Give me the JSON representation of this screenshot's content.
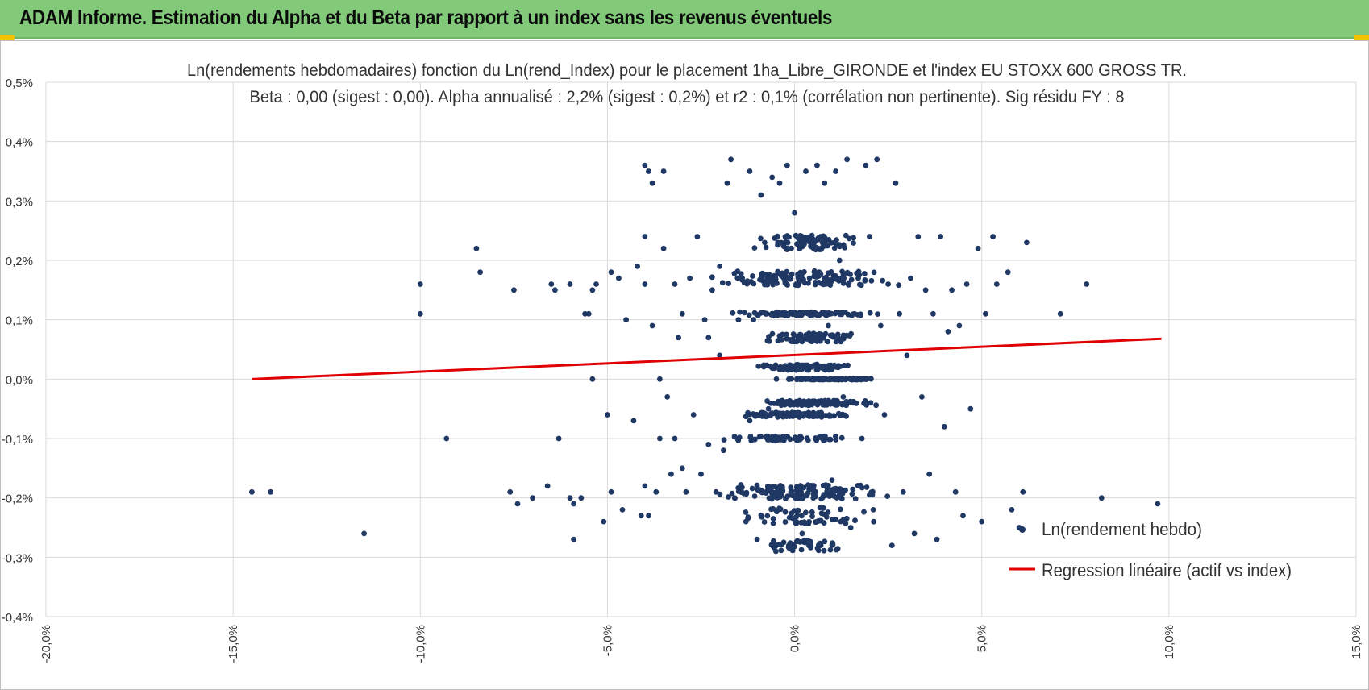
{
  "header": {
    "title": "ADAM Informe. Estimation du Alpha et du Beta par rapport à un index sans les revenus éventuels",
    "bg_color": "#82c97a",
    "corner_color": "#f3c200"
  },
  "chart_data": {
    "type": "scatter",
    "title_line1": "Ln(rendements hebdomadaires) fonction du Ln(rend_Index) pour le placement 1ha_Libre_GIRONDE et l'index EU STOXX 600 GROSS TR.",
    "title_line2": "Beta : 0,00 (sigest : 0,00). Alpha annualisé : 2,2% (sigest : 0,2%) et r2 : 0,1% (corrélation non pertinente). Sig résidu FY : 8",
    "xlim": [
      -0.2,
      0.15
    ],
    "ylim": [
      -0.004,
      0.005
    ],
    "x_ticks": [
      -0.2,
      -0.15,
      -0.1,
      -0.05,
      0.0,
      0.05,
      0.1,
      0.15
    ],
    "x_tick_labels": [
      "-20,0%",
      "-15,0%",
      "-10,0%",
      "-5,0%",
      "0,0%",
      "5,0%",
      "10,0%",
      "15,0%"
    ],
    "y_ticks": [
      0.005,
      0.004,
      0.003,
      0.002,
      0.001,
      0.0,
      -0.001,
      -0.002,
      -0.003,
      -0.004
    ],
    "y_tick_labels": [
      "0,5%",
      "0,4%",
      "0,3%",
      "0,2%",
      "0,1%",
      "0,0%",
      "-0,1%",
      "-0,2%",
      "-0,3%",
      "-0,4%"
    ],
    "grid": true,
    "legend_position": "bottom-right",
    "series": [
      {
        "name": "Ln(rendement hebdo)",
        "kind": "scatter",
        "color": "#1f3864",
        "points": [
          [
            -0.145,
            -0.0019
          ],
          [
            -0.14,
            -0.0019
          ],
          [
            -0.115,
            -0.0026
          ],
          [
            -0.1,
            0.0016
          ],
          [
            -0.1,
            0.0011
          ],
          [
            -0.093,
            -0.001
          ],
          [
            -0.085,
            0.0022
          ],
          [
            -0.084,
            0.0018
          ],
          [
            -0.076,
            -0.0019
          ],
          [
            -0.075,
            0.0015
          ],
          [
            -0.074,
            -0.0021
          ],
          [
            -0.07,
            -0.002
          ],
          [
            -0.066,
            -0.0018
          ],
          [
            -0.065,
            0.0016
          ],
          [
            -0.064,
            0.0015
          ],
          [
            -0.063,
            -0.001
          ],
          [
            -0.06,
            0.0016
          ],
          [
            -0.06,
            -0.002
          ],
          [
            -0.059,
            -0.0021
          ],
          [
            -0.059,
            -0.0027
          ],
          [
            -0.057,
            -0.002
          ],
          [
            -0.056,
            0.0011
          ],
          [
            -0.055,
            0.0011
          ],
          [
            -0.054,
            0.0015
          ],
          [
            -0.054,
            0.0
          ],
          [
            -0.053,
            0.0016
          ],
          [
            -0.051,
            -0.0024
          ],
          [
            -0.05,
            -0.0006
          ],
          [
            -0.049,
            0.0018
          ],
          [
            -0.049,
            -0.0019
          ],
          [
            -0.047,
            0.0017
          ],
          [
            -0.046,
            -0.0022
          ],
          [
            -0.045,
            0.001
          ],
          [
            -0.043,
            -0.0007
          ],
          [
            -0.042,
            0.0019
          ],
          [
            -0.041,
            -0.0023
          ],
          [
            -0.04,
            0.0036
          ],
          [
            -0.04,
            0.0024
          ],
          [
            -0.04,
            0.0016
          ],
          [
            -0.04,
            -0.0018
          ],
          [
            -0.039,
            0.0035
          ],
          [
            -0.039,
            -0.0023
          ],
          [
            -0.038,
            0.0033
          ],
          [
            -0.038,
            0.0009
          ],
          [
            -0.037,
            -0.0019
          ],
          [
            -0.036,
            0.0
          ],
          [
            -0.036,
            -0.001
          ],
          [
            -0.035,
            0.0035
          ],
          [
            -0.035,
            0.0022
          ],
          [
            -0.034,
            -0.0003
          ],
          [
            -0.033,
            -0.0016
          ],
          [
            -0.032,
            0.0016
          ],
          [
            -0.032,
            -0.001
          ],
          [
            -0.031,
            0.0007
          ],
          [
            -0.03,
            0.0011
          ],
          [
            -0.03,
            -0.0015
          ],
          [
            -0.029,
            -0.0019
          ],
          [
            -0.028,
            0.0017
          ],
          [
            -0.027,
            -0.0006
          ],
          [
            -0.026,
            0.0024
          ],
          [
            -0.025,
            -0.0016
          ],
          [
            -0.024,
            0.001
          ],
          [
            -0.023,
            -0.0011
          ],
          [
            -0.023,
            0.0007
          ],
          [
            -0.022,
            0.0015
          ],
          [
            -0.021,
            -0.0019
          ],
          [
            -0.02,
            0.0004
          ],
          [
            -0.02,
            0.0019
          ],
          [
            -0.019,
            -0.0012
          ],
          [
            -0.018,
            0.0033
          ],
          [
            -0.017,
            0.0037
          ],
          [
            -0.016,
            -0.002
          ],
          [
            -0.015,
            0.001
          ],
          [
            -0.014,
            0.0017
          ],
          [
            -0.013,
            -0.0024
          ],
          [
            -0.012,
            0.0035
          ],
          [
            -0.012,
            -0.0007
          ],
          [
            -0.011,
            0.001
          ],
          [
            -0.01,
            -0.0027
          ],
          [
            -0.009,
            0.0031
          ],
          [
            -0.008,
            0.0023
          ],
          [
            -0.007,
            -0.0005
          ],
          [
            -0.006,
            0.0034
          ],
          [
            -0.006,
            0.0017
          ],
          [
            -0.005,
            -0.0029
          ],
          [
            -0.004,
            0.0033
          ],
          [
            -0.003,
            0.0002
          ],
          [
            -0.002,
            0.0036
          ],
          [
            -0.001,
            -0.0019
          ],
          [
            0.0,
            0.0028
          ],
          [
            0.001,
            0.0011
          ],
          [
            0.002,
            -0.0026
          ],
          [
            0.003,
            0.0035
          ],
          [
            0.004,
            0.0017
          ],
          [
            0.005,
            -0.002
          ],
          [
            0.006,
            0.0036
          ],
          [
            0.007,
            0.0024
          ],
          [
            0.007,
            -0.0028
          ],
          [
            0.008,
            0.0033
          ],
          [
            0.009,
            0.0009
          ],
          [
            0.01,
            -0.0017
          ],
          [
            0.011,
            0.0035
          ],
          [
            0.012,
            0.002
          ],
          [
            0.013,
            -0.0003
          ],
          [
            0.014,
            0.0037
          ],
          [
            0.015,
            -0.0025
          ],
          [
            0.016,
            0.0011
          ],
          [
            0.017,
            0.0017
          ],
          [
            0.018,
            -0.001
          ],
          [
            0.019,
            0.0036
          ],
          [
            0.02,
            0.0024
          ],
          [
            0.021,
            -0.0022
          ],
          [
            0.022,
            0.0037
          ],
          [
            0.023,
            0.0009
          ],
          [
            0.024,
            -0.0006
          ],
          [
            0.025,
            0.0016
          ],
          [
            0.026,
            -0.0028
          ],
          [
            0.027,
            0.0033
          ],
          [
            0.028,
            0.0011
          ],
          [
            0.029,
            -0.0019
          ],
          [
            0.03,
            0.0004
          ],
          [
            0.031,
            0.0017
          ],
          [
            0.032,
            -0.0026
          ],
          [
            0.033,
            0.0024
          ],
          [
            0.034,
            -0.0003
          ],
          [
            0.035,
            0.0015
          ],
          [
            0.036,
            -0.0016
          ],
          [
            0.037,
            0.0011
          ],
          [
            0.038,
            -0.0027
          ],
          [
            0.039,
            0.0024
          ],
          [
            0.04,
            -0.0008
          ],
          [
            0.041,
            0.0008
          ],
          [
            0.042,
            0.0015
          ],
          [
            0.043,
            -0.0019
          ],
          [
            0.044,
            0.0009
          ],
          [
            0.045,
            -0.0023
          ],
          [
            0.046,
            0.0016
          ],
          [
            0.047,
            -0.0005
          ],
          [
            0.049,
            0.0022
          ],
          [
            0.05,
            -0.0024
          ],
          [
            0.051,
            0.0011
          ],
          [
            0.053,
            0.0024
          ],
          [
            0.054,
            0.0016
          ],
          [
            0.057,
            0.0018
          ],
          [
            0.058,
            -0.0022
          ],
          [
            0.06,
            -0.0025
          ],
          [
            0.061,
            -0.0019
          ],
          [
            0.062,
            0.0023
          ],
          [
            0.071,
            0.0011
          ],
          [
            0.078,
            0.0016
          ],
          [
            0.082,
            -0.002
          ],
          [
            0.097,
            -0.0021
          ]
        ]
      },
      {
        "name": "Regression linéaire (actif vs index)",
        "kind": "line",
        "color": "#e00000",
        "x": [
          -0.145,
          0.098
        ],
        "y": [
          0.0,
          0.00068
        ]
      }
    ],
    "dense_bands": [
      {
        "y": 0.0023,
        "spread": 0.00012,
        "x_range": [
          -0.015,
          0.022
        ],
        "n": 90
      },
      {
        "y": 0.0017,
        "spread": 0.00012,
        "x_range": [
          -0.025,
          0.03
        ],
        "n": 140
      },
      {
        "y": 0.0011,
        "spread": 3e-05,
        "x_range": [
          -0.02,
          0.025
        ],
        "n": 110
      },
      {
        "y": 0.0007,
        "spread": 7e-05,
        "x_range": [
          -0.012,
          0.02
        ],
        "n": 80
      },
      {
        "y": 0.0002,
        "spread": 5e-05,
        "x_range": [
          -0.015,
          0.02
        ],
        "n": 90
      },
      {
        "y": 0.0,
        "spread": 1e-05,
        "x_range": [
          -0.008,
          0.025
        ],
        "n": 120
      },
      {
        "y": -0.0004,
        "spread": 4e-05,
        "x_range": [
          -0.015,
          0.025
        ],
        "n": 110
      },
      {
        "y": -0.0006,
        "spread": 4e-05,
        "x_range": [
          -0.02,
          0.02
        ],
        "n": 90
      },
      {
        "y": -0.001,
        "spread": 4e-05,
        "x_range": [
          -0.025,
          0.02
        ],
        "n": 60
      },
      {
        "y": -0.0019,
        "spread": 0.00012,
        "x_range": [
          -0.025,
          0.03
        ],
        "n": 140
      },
      {
        "y": -0.0023,
        "spread": 0.00014,
        "x_range": [
          -0.02,
          0.025
        ],
        "n": 60
      },
      {
        "y": -0.0028,
        "spread": 9e-05,
        "x_range": [
          -0.015,
          0.02
        ],
        "n": 50
      }
    ]
  }
}
